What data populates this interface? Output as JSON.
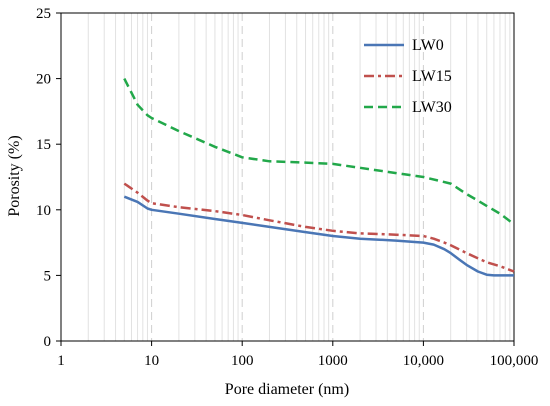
{
  "chart_data": {
    "type": "line",
    "xlabel": "Pore diameter (nm)",
    "ylabel": "Porosity (%)",
    "x_scale": "log",
    "xlim": [
      1,
      100000
    ],
    "ylim": [
      0,
      25
    ],
    "x_ticks": [
      {
        "value": 1,
        "label": "1"
      },
      {
        "value": 10,
        "label": "10"
      },
      {
        "value": 100,
        "label": "100"
      },
      {
        "value": 1000,
        "label": "1000"
      },
      {
        "value": 10000,
        "label": "10,000"
      },
      {
        "value": 100000,
        "label": "100,000"
      }
    ],
    "y_ticks": [
      {
        "value": 0,
        "label": "0"
      },
      {
        "value": 5,
        "label": "5"
      },
      {
        "value": 10,
        "label": "10"
      },
      {
        "value": 15,
        "label": "15"
      },
      {
        "value": 20,
        "label": "20"
      },
      {
        "value": 25,
        "label": "25"
      }
    ],
    "grid": "vertical minor and major (log decades)",
    "legend_position": "top-right",
    "series": [
      {
        "name": "LW0",
        "color": "#4a76b5",
        "style": "solid",
        "x": [
          5,
          7,
          9,
          10,
          20,
          50,
          100,
          200,
          500,
          1000,
          2000,
          5000,
          10000,
          13000,
          17000,
          20000,
          25000,
          30000,
          40000,
          50000,
          60000,
          70000,
          80000,
          100000
        ],
        "y": [
          11.0,
          10.6,
          10.1,
          10.0,
          9.7,
          9.3,
          9.0,
          8.7,
          8.3,
          8.0,
          7.8,
          7.65,
          7.5,
          7.35,
          7.0,
          6.7,
          6.2,
          5.8,
          5.3,
          5.05,
          5.0,
          5.0,
          5.0,
          5.0
        ]
      },
      {
        "name": "LW15",
        "color": "#c0504d",
        "style": "dash-dot",
        "x": [
          5,
          7,
          9,
          10,
          20,
          50,
          100,
          200,
          500,
          1000,
          2000,
          5000,
          10000,
          13000,
          17000,
          20000,
          30000,
          50000,
          70000,
          100000
        ],
        "y": [
          12.0,
          11.3,
          10.7,
          10.5,
          10.2,
          9.9,
          9.6,
          9.2,
          8.7,
          8.4,
          8.2,
          8.1,
          8.0,
          7.8,
          7.5,
          7.3,
          6.7,
          6.0,
          5.7,
          5.3
        ]
      },
      {
        "name": "LW30",
        "color": "#22a84a",
        "style": "dashed",
        "x": [
          5,
          7,
          9,
          10,
          20,
          50,
          100,
          200,
          500,
          1000,
          2000,
          5000,
          10000,
          20000,
          30000,
          40000,
          50000,
          70000,
          100000
        ],
        "y": [
          20.0,
          18.0,
          17.2,
          17.0,
          16.0,
          14.8,
          14.0,
          13.7,
          13.6,
          13.5,
          13.2,
          12.8,
          12.5,
          12.0,
          11.2,
          10.7,
          10.3,
          9.7,
          8.9
        ]
      }
    ]
  }
}
